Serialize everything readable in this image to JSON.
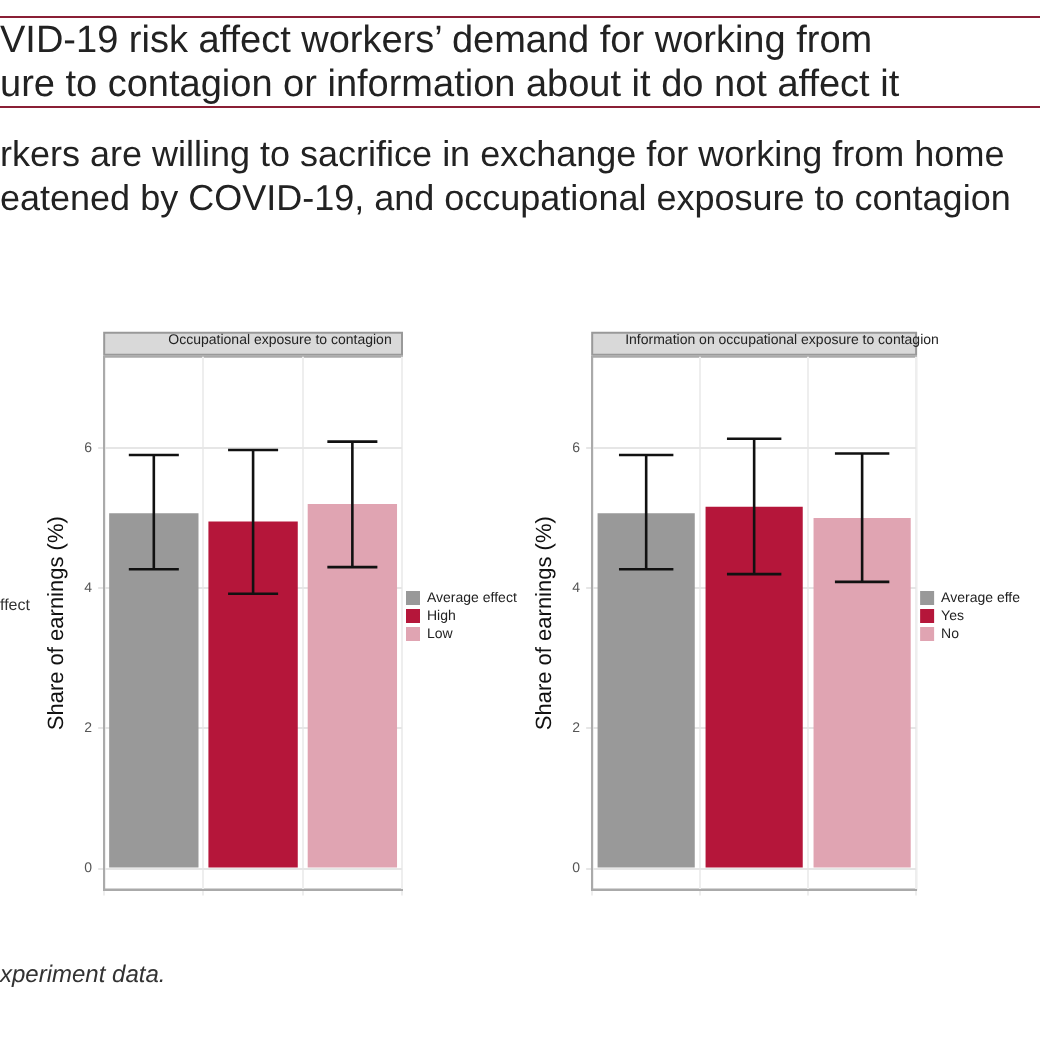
{
  "chart_data": [
    {
      "type": "bar",
      "title": "Occupational exposure to contagion",
      "subtitle": "VID-19 risk affect workers’ demand for working from\nure to contagion or information about it do not affect it",
      "categories": [
        null,
        null,
        null
      ],
      "ylabel": "Share of earnings (%)",
      "ylim": [
        -0.3,
        7.3
      ],
      "yticks": [
        0,
        2,
        4,
        6
      ],
      "grid": true,
      "legend": "right",
      "tick_labels": "y",
      "series": [
        {
          "name": "Average effect",
          "color": "#999999",
          "values": [
            5.07,
            null,
            null
          ],
          "errors": [
            [
              4.27,
              5.9
            ],
            null,
            null
          ]
        },
        {
          "name": "High",
          "color": "#b5163a",
          "values": [
            null,
            4.95,
            null
          ],
          "errors": [
            null,
            [
              3.92,
              5.97
            ],
            null
          ]
        },
        {
          "name": "Low",
          "color": "#e0a4b2",
          "values": [
            null,
            null,
            5.2
          ],
          "errors": [
            null,
            null,
            [
              4.3,
              6.09
            ]
          ]
        }
      ],
      "annotations": [
        "ffect",
        "rkers are willing to sacrifice in exchange for working from home\neatened by COVID-19, and occupational exposure to contagion",
        "xperiment data."
      ]
    },
    {
      "type": "bar",
      "title": "Information on occupational exposure to contagion",
      "categories": [
        null,
        null,
        null
      ],
      "ylabel": "Share of earnings (%)",
      "ylim": [
        -0.3,
        7.3
      ],
      "yticks": [
        0,
        2,
        4,
        6
      ],
      "grid": true,
      "legend": "right",
      "tick_labels": "y",
      "series": [
        {
          "name": "Average effe",
          "color": "#999999",
          "values": [
            5.07,
            null,
            null
          ],
          "errors": [
            [
              4.27,
              5.9
            ],
            null,
            null
          ]
        },
        {
          "name": "Yes",
          "color": "#b5163a",
          "values": [
            null,
            5.16,
            null
          ],
          "errors": [
            null,
            [
              4.2,
              6.13
            ],
            null
          ]
        },
        {
          "name": "No",
          "color": "#e0a4b2",
          "values": [
            null,
            null,
            5.0
          ],
          "errors": [
            null,
            null,
            [
              4.09,
              5.92
            ]
          ]
        }
      ]
    }
  ]
}
